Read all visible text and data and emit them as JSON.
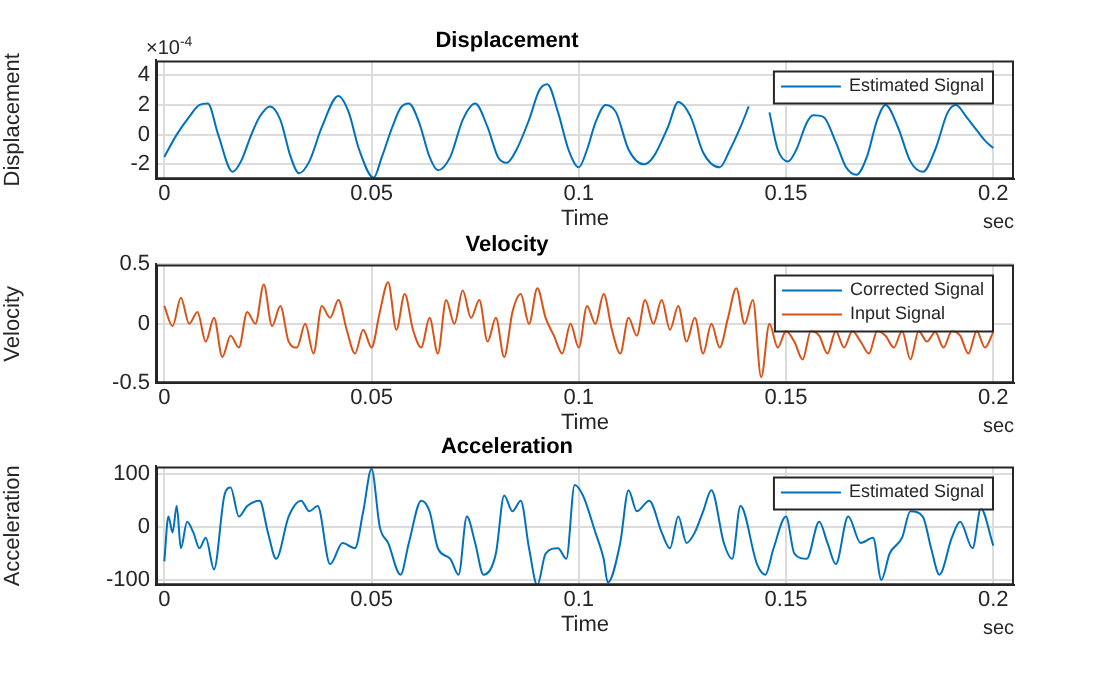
{
  "chart_data": [
    {
      "type": "line",
      "title": "Displacement",
      "xlabel": "Time",
      "ylabel": "Displacement",
      "annotations": [
        "sec",
        "×10$^{-4}$"
      ],
      "xlim": [
        -0.002,
        0.205
      ],
      "xticks": [
        0,
        0.05,
        0.1,
        0.15,
        0.2
      ],
      "ylim": [
        -3,
        5
      ],
      "yticks": [
        -2,
        0,
        2,
        4
      ],
      "grid": true,
      "legend": "top right",
      "series": [
        {
          "name": "Estimated Signal",
          "color": "#0072bd",
          "x": [
            0,
            0.003,
            0.006,
            0.0085,
            0.0105,
            0.013,
            0.0165,
            0.0185,
            0.021,
            0.023,
            0.0255,
            0.028,
            0.0305,
            0.0325,
            0.035,
            0.038,
            0.042,
            0.0445,
            0.047,
            0.0505,
            0.0525,
            0.055,
            0.057,
            0.059,
            0.0615,
            0.064,
            0.066,
            0.069,
            0.072,
            0.075,
            0.078,
            0.0805,
            0.0826,
            0.085,
            0.088,
            0.0905,
            0.0924,
            0.095,
            0.0975,
            0.1,
            0.102,
            0.104,
            0.1065,
            0.109,
            0.112,
            0.1158,
            0.118,
            0.1215,
            0.124,
            0.127,
            0.13,
            0.134,
            0.1365,
            0.139,
            0.141,
            0.1435,
            0.146,
            0.148,
            0.1505,
            0.1525,
            0.155,
            0.1565,
            0.159,
            0.162,
            0.1645,
            0.167,
            0.1695,
            0.172,
            0.174,
            0.177,
            0.18,
            0.183,
            0.186,
            0.189,
            0.191,
            0.1935,
            0.196,
            0.198,
            0.2
          ],
          "values": [
            -1.5,
            0,
            1.2,
            2,
            2.1,
            0,
            -2.5,
            -1.8,
            0,
            1.2,
            1.9,
            1,
            -1.5,
            -2.6,
            -1.8,
            0.5,
            2.6,
            1.5,
            -1,
            -2.9,
            -1.5,
            0.5,
            1.8,
            2.1,
            0.8,
            -1.5,
            -2.4,
            -1.5,
            1,
            2.1,
            0.5,
            -1.5,
            -1.9,
            -1,
            1,
            3,
            3.4,
            1.5,
            -1,
            -2.2,
            -1,
            0.8,
            2,
            1.5,
            -1,
            -2,
            -1.5,
            0.5,
            2.2,
            1.2,
            -1.2,
            -2.2,
            -1,
            0.5,
            1.9,
            null,
            1.5,
            -1,
            -1.8,
            -1,
            0.8,
            1.3,
            1.2,
            -0.5,
            -2.2,
            -2.7,
            -1.5,
            1,
            2,
            0.5,
            -1.8,
            -2.5,
            -1,
            1.5,
            2,
            1.2,
            0.3,
            -0.4,
            -0.9
          ]
        }
      ]
    },
    {
      "type": "line",
      "title": "Velocity",
      "xlabel": "Time",
      "ylabel": "Velocity",
      "annotations": [
        "sec"
      ],
      "xlim": [
        -0.002,
        0.205
      ],
      "xticks": [
        0,
        0.05,
        0.1,
        0.15,
        0.2
      ],
      "ylim": [
        -0.5,
        0.5
      ],
      "yticks": [
        -0.5,
        0,
        0.5
      ],
      "grid": true,
      "legend": "top right",
      "series": [
        {
          "name": "Corrected Signal",
          "color": "#0072bd"
        },
        {
          "name": "Input Signal",
          "color": "#d95319",
          "x": [
            0,
            0.002,
            0.004,
            0.006,
            0.008,
            0.01,
            0.012,
            0.014,
            0.016,
            0.018,
            0.02,
            0.022,
            0.024,
            0.026,
            0.028,
            0.03,
            0.032,
            0.034,
            0.036,
            0.038,
            0.04,
            0.042,
            0.044,
            0.046,
            0.048,
            0.05,
            0.052,
            0.054,
            0.056,
            0.058,
            0.06,
            0.062,
            0.064,
            0.066,
            0.068,
            0.07,
            0.072,
            0.074,
            0.076,
            0.078,
            0.08,
            0.082,
            0.084,
            0.086,
            0.088,
            0.09,
            0.092,
            0.094,
            0.096,
            0.098,
            0.1,
            0.102,
            0.104,
            0.106,
            0.108,
            0.11,
            0.112,
            0.114,
            0.116,
            0.118,
            0.12,
            0.122,
            0.124,
            0.126,
            0.128,
            0.13,
            0.132,
            0.134,
            0.136,
            0.138,
            0.14,
            0.142,
            0.144,
            0.146,
            0.148,
            0.15,
            0.152,
            0.154,
            0.156,
            0.158,
            0.16,
            0.162,
            0.164,
            0.166,
            0.168,
            0.17,
            0.172,
            0.174,
            0.176,
            0.178,
            0.18,
            0.182,
            0.184,
            0.186,
            0.188,
            0.19,
            0.192,
            0.194,
            0.196,
            0.198,
            0.2
          ],
          "values": [
            0.15,
            -0.02,
            0.22,
            0,
            0.1,
            -0.15,
            0.05,
            -0.28,
            -0.1,
            -0.2,
            0.1,
            0,
            0.33,
            -0.02,
            0.15,
            -0.15,
            -0.2,
            0,
            -0.25,
            0.15,
            0.05,
            0.2,
            -0.05,
            -0.25,
            -0.05,
            -0.2,
            0.1,
            0.35,
            -0.05,
            0.25,
            -0.05,
            -0.2,
            0.05,
            -0.25,
            0.2,
            0,
            0.28,
            0.05,
            0.2,
            -0.15,
            0.05,
            -0.28,
            0.1,
            0.25,
            0,
            0.3,
            0.05,
            -0.1,
            -0.25,
            0,
            -0.2,
            0.15,
            0,
            0.25,
            -0.05,
            -0.25,
            0.05,
            -0.1,
            0.2,
            0,
            0.2,
            -0.05,
            0.15,
            -0.15,
            0.05,
            -0.25,
            0,
            -0.2,
            0.05,
            0.3,
            0,
            0.2,
            -0.45,
            0,
            -0.2,
            -0.06,
            -0.15,
            -0.3,
            -0.06,
            -0.1,
            -0.25,
            -0.06,
            -0.2,
            -0.06,
            -0.15,
            -0.25,
            -0.06,
            -0.1,
            -0.2,
            -0.06,
            -0.3,
            -0.06,
            -0.15,
            -0.07,
            -0.2,
            -0.06,
            -0.1,
            -0.25,
            -0.06,
            -0.2,
            -0.07
          ]
        }
      ]
    },
    {
      "type": "line",
      "title": "Acceleration",
      "xlabel": "Time",
      "ylabel": "Acceleration",
      "annotations": [
        "sec"
      ],
      "xlim": [
        -0.002,
        0.205
      ],
      "xticks": [
        0,
        0.05,
        0.1,
        0.15,
        0.2
      ],
      "ylim": [
        -110,
        115
      ],
      "yticks": [
        -100,
        0,
        100
      ],
      "grid": true,
      "legend": "top right",
      "series": [
        {
          "name": "Estimated Signal",
          "color": "#0072bd",
          "x": [
            0,
            0.001,
            0.002,
            0.003,
            0.004,
            0.0055,
            0.007,
            0.0085,
            0.01,
            0.012,
            0.0145,
            0.016,
            0.018,
            0.02,
            0.023,
            0.025,
            0.027,
            0.03,
            0.033,
            0.035,
            0.037,
            0.04,
            0.043,
            0.046,
            0.048,
            0.05,
            0.052,
            0.054,
            0.057,
            0.059,
            0.062,
            0.064,
            0.066,
            0.069,
            0.071,
            0.073,
            0.075,
            0.077,
            0.08,
            0.082,
            0.084,
            0.086,
            0.088,
            0.09,
            0.092,
            0.095,
            0.097,
            0.099,
            0.101,
            0.104,
            0.106,
            0.107,
            0.11,
            0.112,
            0.114,
            0.117,
            0.12,
            0.122,
            0.124,
            0.126,
            0.128,
            0.13,
            0.132,
            0.135,
            0.137,
            0.139,
            0.143,
            0.145,
            0.147,
            0.15,
            0.152,
            0.155,
            0.158,
            0.16,
            0.162,
            0.165,
            0.168,
            0.171,
            0.173,
            0.175,
            0.178,
            0.18,
            0.183,
            0.185,
            0.187,
            0.19,
            0.192,
            0.195,
            0.197,
            0.2
          ],
          "values": [
            -65,
            20,
            -10,
            40,
            -40,
            10,
            -10,
            -40,
            -20,
            -80,
            60,
            75,
            20,
            40,
            50,
            -10,
            -60,
            20,
            50,
            30,
            40,
            -70,
            -30,
            -40,
            30,
            110,
            0,
            -30,
            -90,
            -30,
            50,
            30,
            -40,
            -60,
            -90,
            20,
            -30,
            -90,
            -50,
            60,
            30,
            50,
            -40,
            -110,
            -50,
            -40,
            -60,
            80,
            60,
            -10,
            -60,
            -105,
            -30,
            70,
            30,
            50,
            -10,
            -40,
            20,
            -30,
            -10,
            30,
            70,
            -30,
            -60,
            40,
            -70,
            -90,
            -40,
            20,
            -50,
            -60,
            10,
            -30,
            -70,
            20,
            -30,
            -20,
            -100,
            -50,
            -20,
            30,
            20,
            -40,
            -90,
            -20,
            10,
            -40,
            35,
            -35
          ]
        }
      ]
    }
  ]
}
